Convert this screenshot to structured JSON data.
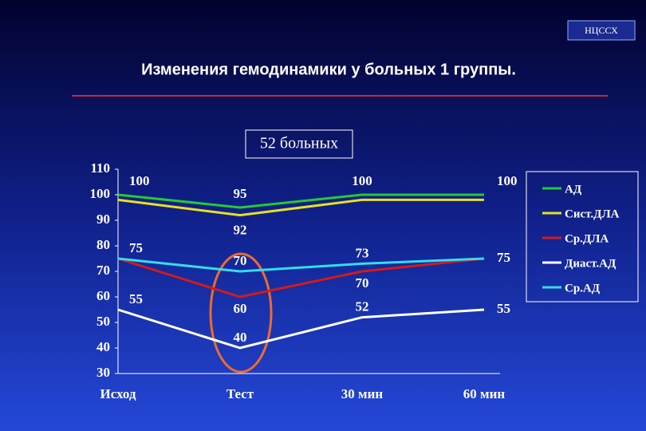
{
  "badge": "НЦССХ",
  "chart_data": {
    "type": "line",
    "title": "Изменения гемодинамики у больных 1 группы.",
    "subtitle": "52 больных",
    "categories": [
      "Исход",
      "Тест",
      "30 мин",
      "60 мин"
    ],
    "ylim": [
      30,
      110
    ],
    "yticks": [
      30,
      40,
      50,
      60,
      70,
      80,
      90,
      100,
      110
    ],
    "legend": "right",
    "series": [
      {
        "name": "АД",
        "color": "#22cc33",
        "values": [
          100,
          95,
          100,
          100
        ],
        "value_labels": [
          "100",
          "95",
          "100",
          "100"
        ]
      },
      {
        "name": "Сист.ДЛА",
        "color": "#e8e020",
        "values": [
          98,
          92,
          98,
          98
        ],
        "value_labels": [
          null,
          "92",
          null,
          null
        ]
      },
      {
        "name": "Ср.ДЛА",
        "color": "#d41a1a",
        "values": [
          75,
          60,
          70,
          75
        ],
        "value_labels": [
          null,
          "60",
          "70",
          "75"
        ]
      },
      {
        "name": "Диаст.АД",
        "color": "#ffffff",
        "values": [
          55,
          40,
          52,
          55
        ],
        "value_labels": [
          "55",
          "40",
          "52",
          "55"
        ]
      },
      {
        "name": "Ср.АД",
        "color": "#33ddee",
        "values": [
          75,
          70,
          73,
          75
        ],
        "value_labels": [
          "75",
          "70",
          "73",
          null
        ]
      }
    ]
  }
}
